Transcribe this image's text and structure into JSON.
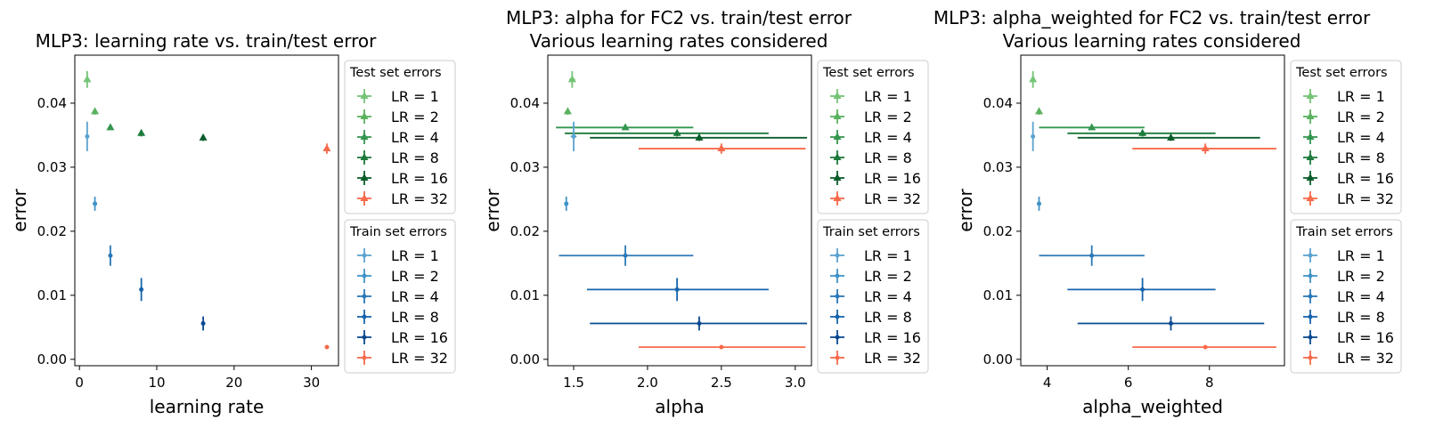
{
  "chart_data": [
    {
      "type": "scatter",
      "title": [
        "MLP3: learning rate vs. train/test error"
      ],
      "xlabel": "learning rate",
      "ylabel": "error",
      "xlim": [
        -0.6,
        33.5
      ],
      "ylim": [
        -0.001,
        0.0475
      ],
      "xticks": [
        0,
        10,
        20,
        30
      ],
      "xtick_labels": [
        "0",
        "10",
        "20",
        "30"
      ],
      "yticks": [
        0.0,
        0.01,
        0.02,
        0.03,
        0.04
      ],
      "ytick_labels": [
        "0.00",
        "0.01",
        "0.02",
        "0.03",
        "0.04"
      ],
      "grid": false,
      "legend_placement": "outside-right",
      "test_series": [
        {
          "label": "LR = 1",
          "x": 1,
          "y": 0.0437,
          "xerr": [
            0,
            0
          ],
          "yerr": 0.0013
        },
        {
          "label": "LR = 2",
          "x": 2,
          "y": 0.0387,
          "xerr": [
            0,
            0
          ],
          "yerr": 0.0005
        },
        {
          "label": "LR = 4",
          "x": 4,
          "y": 0.0362,
          "xerr": [
            0,
            0
          ],
          "yerr": 0.0004
        },
        {
          "label": "LR = 8",
          "x": 8,
          "y": 0.0353,
          "xerr": [
            0,
            0
          ],
          "yerr": 0.0005
        },
        {
          "label": "LR = 16",
          "x": 16,
          "y": 0.0346,
          "xerr": [
            0,
            0
          ],
          "yerr": 0.0005
        },
        {
          "label": "LR = 32",
          "x": 32,
          "y": 0.0329,
          "xerr": [
            0,
            0
          ],
          "yerr": 0.0008
        }
      ],
      "train_series": [
        {
          "label": "LR = 1",
          "x": 1,
          "y": 0.0348,
          "xerr": [
            0,
            0
          ],
          "yerr": 0.0023
        },
        {
          "label": "LR = 2",
          "x": 2,
          "y": 0.0243,
          "xerr": [
            0,
            0
          ],
          "yerr": 0.0011
        },
        {
          "label": "LR = 4",
          "x": 4,
          "y": 0.0162,
          "xerr": [
            0,
            0
          ],
          "yerr": 0.0016
        },
        {
          "label": "LR = 8",
          "x": 8,
          "y": 0.0109,
          "xerr": [
            0,
            0
          ],
          "yerr": 0.0018
        },
        {
          "label": "LR = 16",
          "x": 16,
          "y": 0.0056,
          "xerr": [
            0,
            0
          ],
          "yerr": 0.0011
        },
        {
          "label": "LR = 32",
          "x": 32,
          "y": 0.0019,
          "xerr": [
            0,
            0
          ],
          "yerr": 0.0003
        }
      ]
    },
    {
      "type": "scatter",
      "title": [
        "MLP3: alpha for FC2 vs. train/test error",
        "Various learning rates considered"
      ],
      "xlabel": "alpha",
      "ylabel": "error",
      "xlim": [
        1.325,
        3.11
      ],
      "ylim": [
        -0.001,
        0.0475
      ],
      "xticks": [
        1.5,
        2.0,
        2.5,
        3.0
      ],
      "xtick_labels": [
        "1.5",
        "2.0",
        "2.5",
        "3.0"
      ],
      "yticks": [
        0.0,
        0.01,
        0.02,
        0.03,
        0.04
      ],
      "ytick_labels": [
        "0.00",
        "0.01",
        "0.02",
        "0.03",
        "0.04"
      ],
      "grid": false,
      "legend_placement": "outside-right",
      "test_series": [
        {
          "label": "LR = 1",
          "x": 1.49,
          "y": 0.0437,
          "xerr": [
            0.02,
            0.02
          ],
          "yerr": 0.0013
        },
        {
          "label": "LR = 2",
          "x": 1.46,
          "y": 0.0387,
          "xerr": [
            0.01,
            0.01
          ],
          "yerr": 0.0005
        },
        {
          "label": "LR = 4",
          "x": 1.85,
          "y": 0.0362,
          "xerr": [
            0.47,
            0.46
          ],
          "yerr": 0.0004
        },
        {
          "label": "LR = 8",
          "x": 2.2,
          "y": 0.0353,
          "xerr": [
            0.76,
            0.62
          ],
          "yerr": 0.0005
        },
        {
          "label": "LR = 16",
          "x": 2.35,
          "y": 0.0346,
          "xerr": [
            0.74,
            0.73
          ],
          "yerr": 0.0005
        },
        {
          "label": "LR = 32",
          "x": 2.5,
          "y": 0.0329,
          "xerr": [
            0.56,
            0.57
          ],
          "yerr": 0.0008
        }
      ],
      "train_series": [
        {
          "label": "LR = 1",
          "x": 1.5,
          "y": 0.0348,
          "xerr": [
            0.02,
            0.02
          ],
          "yerr": 0.0023
        },
        {
          "label": "LR = 2",
          "x": 1.45,
          "y": 0.0243,
          "xerr": [
            0.01,
            0.01
          ],
          "yerr": 0.0011
        },
        {
          "label": "LR = 4",
          "x": 1.85,
          "y": 0.0162,
          "xerr": [
            0.45,
            0.46
          ],
          "yerr": 0.0016
        },
        {
          "label": "LR = 8",
          "x": 2.2,
          "y": 0.0109,
          "xerr": [
            0.61,
            0.62
          ],
          "yerr": 0.0018
        },
        {
          "label": "LR = 16",
          "x": 2.35,
          "y": 0.0056,
          "xerr": [
            0.74,
            0.73
          ],
          "yerr": 0.0011
        },
        {
          "label": "LR = 32",
          "x": 2.5,
          "y": 0.0019,
          "xerr": [
            0.56,
            0.57
          ],
          "yerr": 0.0003
        }
      ]
    },
    {
      "type": "scatter",
      "title": [
        "MLP3: alpha_weighted for FC2 vs. train/test error",
        "Various learning rates considered"
      ],
      "xlabel": "alpha_weighted",
      "ylabel": "error",
      "xlim": [
        3.35,
        9.85
      ],
      "ylim": [
        -0.001,
        0.0475
      ],
      "xticks": [
        4,
        6,
        8
      ],
      "xtick_labels": [
        "4",
        "6",
        "8"
      ],
      "yticks": [
        0.0,
        0.01,
        0.02,
        0.03,
        0.04
      ],
      "ytick_labels": [
        "0.00",
        "0.01",
        "0.02",
        "0.03",
        "0.04"
      ],
      "grid": false,
      "legend_placement": "outside-right",
      "test_series": [
        {
          "label": "LR = 1",
          "x": 3.65,
          "y": 0.0437,
          "xerr": [
            0.03,
            0.03
          ],
          "yerr": 0.0013
        },
        {
          "label": "LR = 2",
          "x": 3.8,
          "y": 0.0387,
          "xerr": [
            0.03,
            0.03
          ],
          "yerr": 0.0005
        },
        {
          "label": "LR = 4",
          "x": 5.1,
          "y": 0.0362,
          "xerr": [
            1.3,
            1.3
          ],
          "yerr": 0.0004
        },
        {
          "label": "LR = 8",
          "x": 6.35,
          "y": 0.0353,
          "xerr": [
            1.85,
            1.8
          ],
          "yerr": 0.0005
        },
        {
          "label": "LR = 16",
          "x": 7.05,
          "y": 0.0346,
          "xerr": [
            2.3,
            2.2
          ],
          "yerr": 0.0005
        },
        {
          "label": "LR = 32",
          "x": 7.9,
          "y": 0.0329,
          "xerr": [
            1.8,
            1.75
          ],
          "yerr": 0.0008
        }
      ],
      "train_series": [
        {
          "label": "LR = 1",
          "x": 3.65,
          "y": 0.0348,
          "xerr": [
            0.03,
            0.03
          ],
          "yerr": 0.0023
        },
        {
          "label": "LR = 2",
          "x": 3.8,
          "y": 0.0243,
          "xerr": [
            0.03,
            0.03
          ],
          "yerr": 0.0011
        },
        {
          "label": "LR = 4",
          "x": 5.1,
          "y": 0.0162,
          "xerr": [
            1.3,
            1.3
          ],
          "yerr": 0.0016
        },
        {
          "label": "LR = 8",
          "x": 6.35,
          "y": 0.0109,
          "xerr": [
            1.85,
            1.8
          ],
          "yerr": 0.0018
        },
        {
          "label": "LR = 16",
          "x": 7.05,
          "y": 0.0056,
          "xerr": [
            2.3,
            2.3
          ],
          "yerr": 0.0011
        },
        {
          "label": "LR = 32",
          "x": 7.9,
          "y": 0.0019,
          "xerr": [
            1.8,
            1.75
          ],
          "yerr": 0.0003
        }
      ]
    }
  ],
  "legends": {
    "test_title": "Test set errors",
    "train_title": "Train set errors"
  },
  "colors": {
    "test": [
      "#74c476",
      "#5ab25e",
      "#34964f",
      "#1d7a3c",
      "#0b5d2b",
      "#f76a4a"
    ],
    "train": [
      "#5ba3cf",
      "#4093c7",
      "#2a78b8",
      "#1764ab",
      "#0a4a90",
      "#f76a4a"
    ]
  }
}
